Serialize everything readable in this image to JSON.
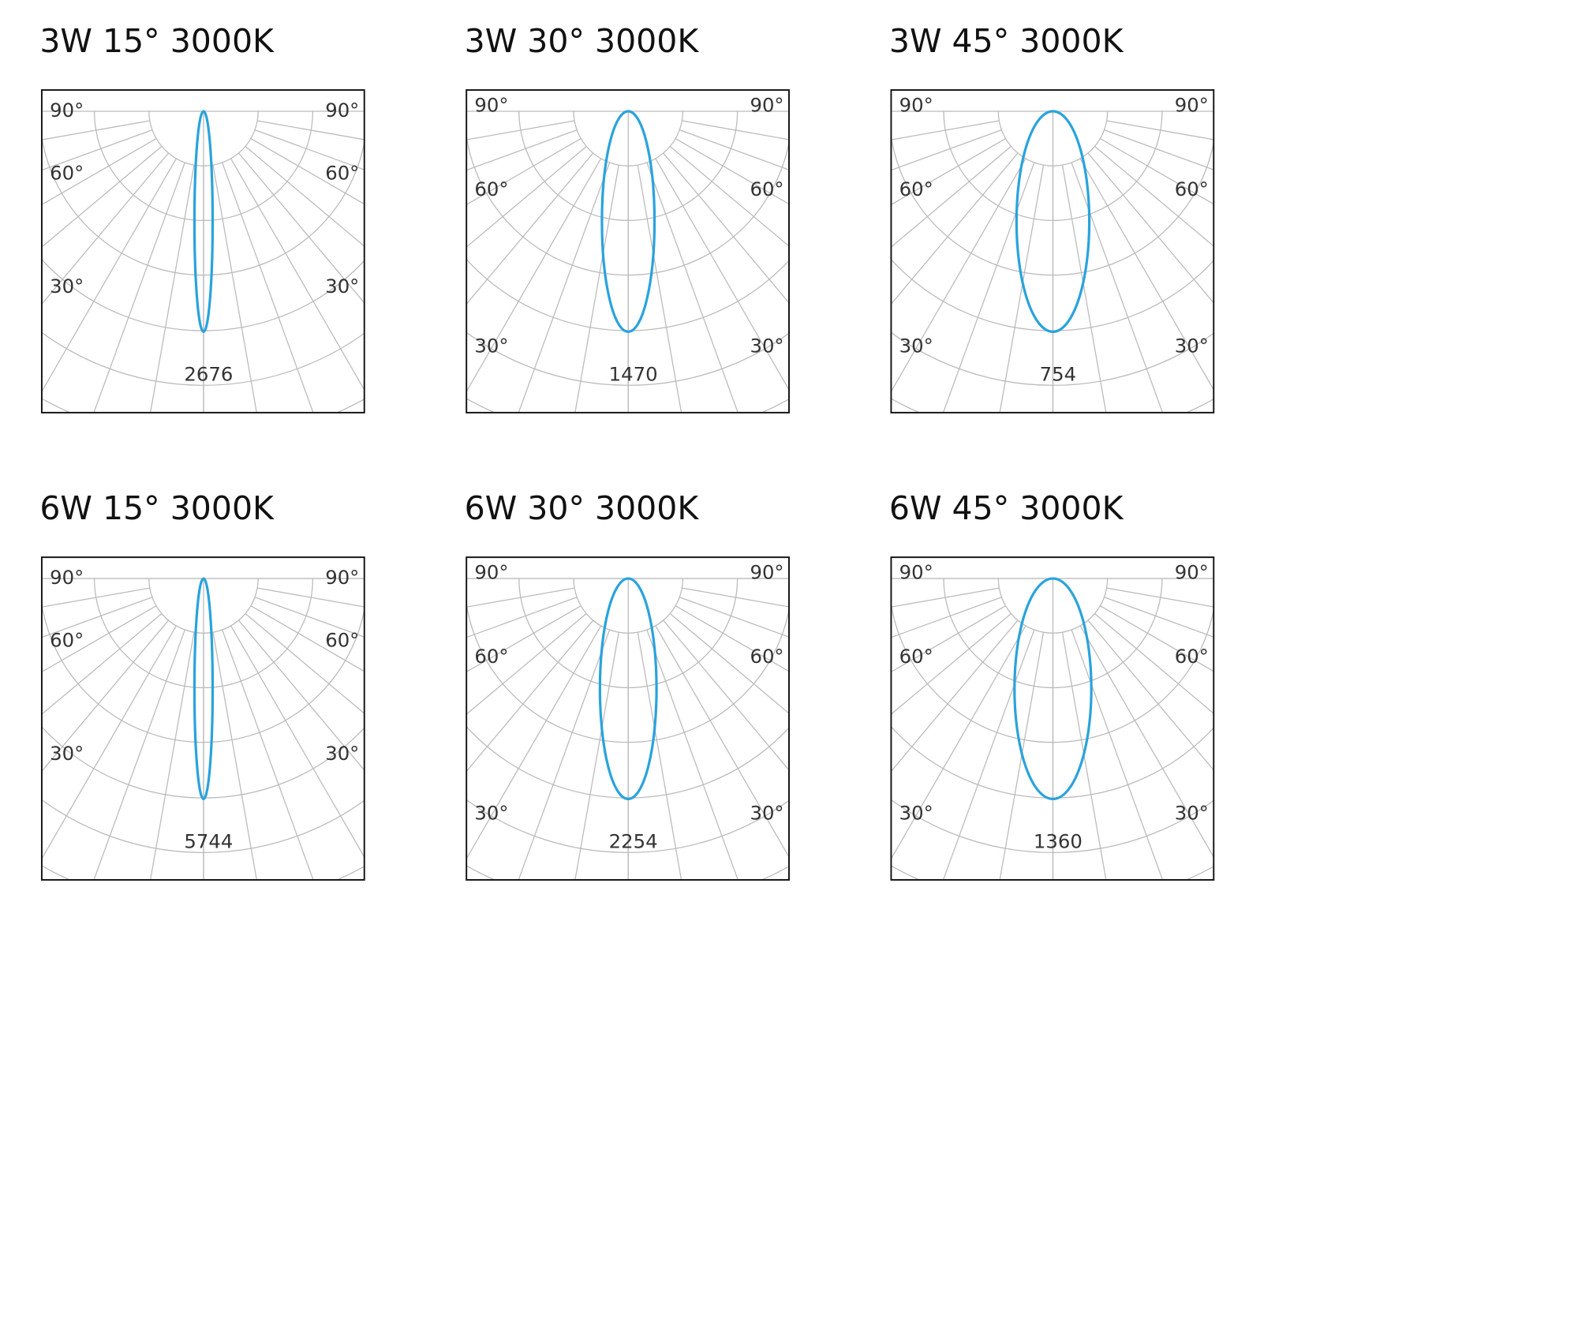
{
  "panels": [
    {
      "title": "3W 15° 3000K",
      "left_labels": [
        "90°",
        "60°",
        "30°"
      ],
      "right_labels": [
        "90°",
        "60°",
        "30°"
      ],
      "peak": "2676"
    },
    {
      "title": "3W 30° 3000K",
      "left_labels": [
        "90°",
        "60°",
        "30°"
      ],
      "right_labels": [
        "90°",
        "60°",
        "30°"
      ],
      "peak": "1470"
    },
    {
      "title": "3W 45° 3000K",
      "left_labels": [
        "90°",
        "60°",
        "30°"
      ],
      "right_labels": [
        "90°",
        "60°",
        "30°"
      ],
      "peak": "754"
    },
    {
      "title": "6W 15° 3000K",
      "left_labels": [
        "90°",
        "60°",
        "30°"
      ],
      "right_labels": [
        "90°",
        "60°",
        "30°"
      ],
      "peak": "5744"
    },
    {
      "title": "6W 30° 3000K",
      "left_labels": [
        "90°",
        "60°",
        "30°"
      ],
      "right_labels": [
        "90°",
        "60°",
        "30°"
      ],
      "peak": "2254"
    },
    {
      "title": "6W 45° 3000K",
      "left_labels": [
        "90°",
        "60°",
        "30°"
      ],
      "right_labels": [
        "90°",
        "60°",
        "30°"
      ],
      "peak": "1360"
    }
  ]
}
